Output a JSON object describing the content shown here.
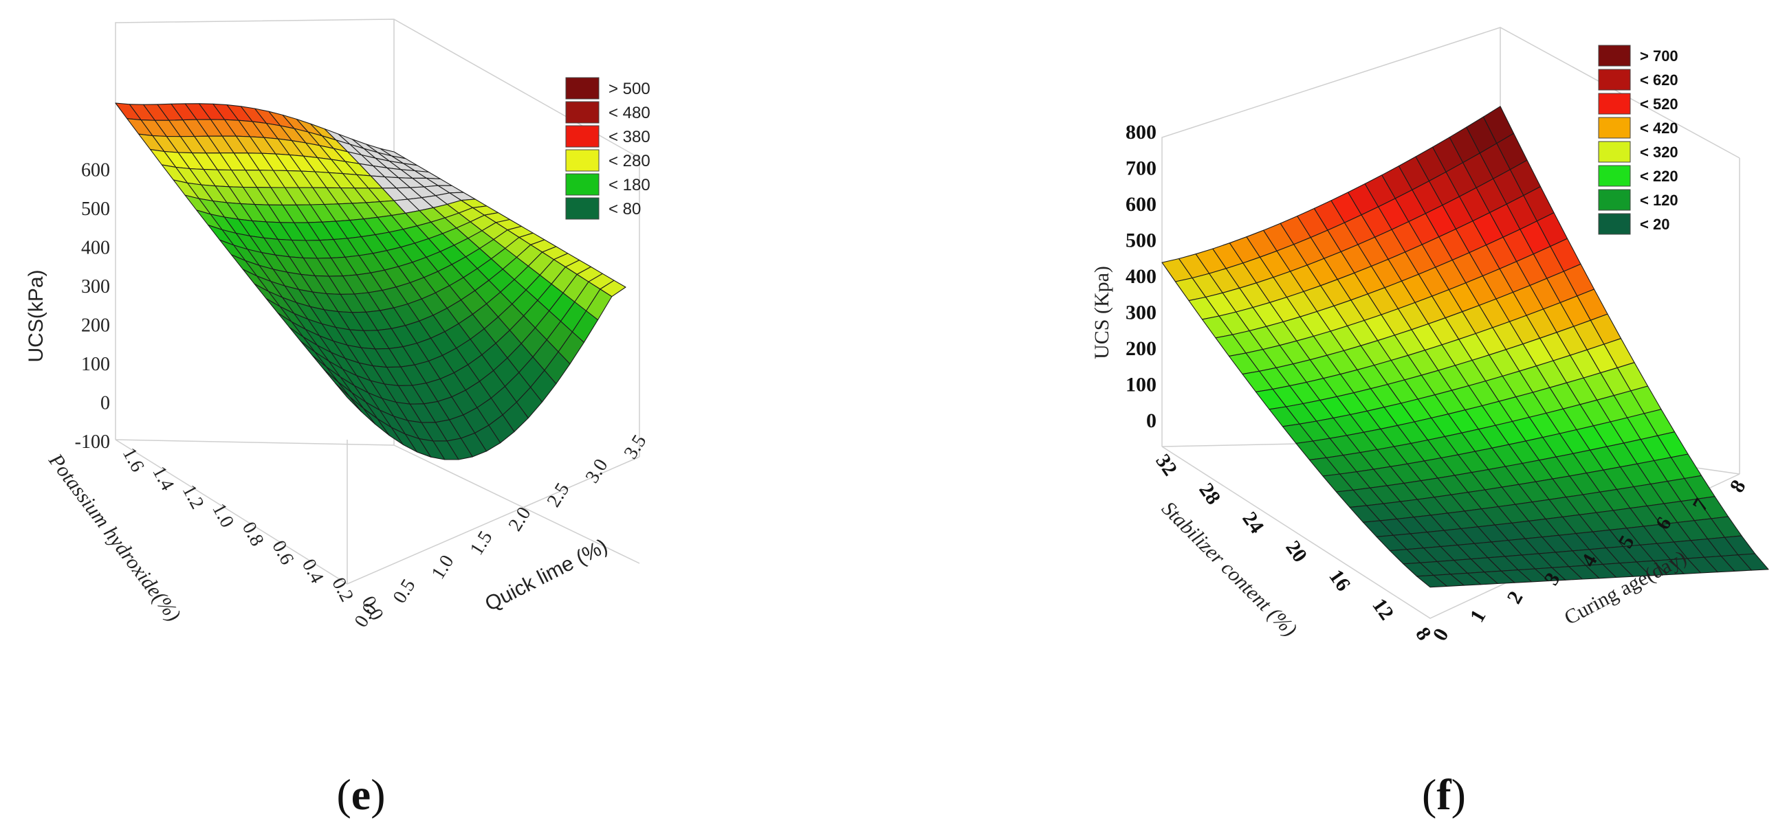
{
  "chart_data": [
    {
      "type": "surface",
      "panel_label_open": "(",
      "panel_label_letter": "e",
      "panel_label_close": ")",
      "zlabel": "UCS(kPa)",
      "xlabel": "Quick lime (%)",
      "ylabel": "Potassium hydroxide(%)",
      "x_ticks": [
        "0.0",
        "0.5",
        "1.0",
        "1.5",
        "2.0",
        "2.5",
        "3.0",
        "3.5"
      ],
      "y_ticks": [
        "0.0",
        "0.2",
        "0.4",
        "0.6",
        "0.8",
        "1.0",
        "1.2",
        "1.4",
        "1.6"
      ],
      "z_ticks": [
        "-100",
        "0",
        "100",
        "200",
        "300",
        "400",
        "500",
        "600"
      ],
      "xlim": [
        0,
        3.5
      ],
      "ylim": [
        0,
        1.6
      ],
      "zlim": [
        -150,
        600
      ],
      "legend_position": "top-right",
      "legend": [
        {
          "label": "> 500",
          "color": "#7a0d0d"
        },
        {
          "label": "< 480",
          "color": "#9b1410"
        },
        {
          "label": "< 380",
          "color": "#ee1c0f"
        },
        {
          "label": "< 280",
          "color": "#e9f21b"
        },
        {
          "label": "< 180",
          "color": "#17c31a"
        },
        {
          "label": "< 80",
          "color": "#0c6b3a"
        }
      ],
      "surface_samples": [
        {
          "quick_lime": 0.0,
          "koh": 1.6,
          "ucs": 390
        },
        {
          "quick_lime": 0.0,
          "koh": 0.0,
          "ucs": -150
        },
        {
          "quick_lime": 3.5,
          "koh": 1.6,
          "ucs": 320
        },
        {
          "quick_lime": 3.5,
          "koh": 0.0,
          "ucs": 360
        },
        {
          "quick_lime": 1.75,
          "koh": 0.8,
          "ucs": 150
        }
      ]
    },
    {
      "type": "surface",
      "panel_label_open": "(",
      "panel_label_letter": "f",
      "panel_label_close": ")",
      "zlabel": "UCS (Kpa)",
      "xlabel": "Curing age(day)",
      "ylabel": "Stabilizer content (%)",
      "x_ticks": [
        "0",
        "1",
        "2",
        "3",
        "4",
        "5",
        "6",
        "7",
        "8"
      ],
      "y_ticks": [
        "8",
        "12",
        "16",
        "20",
        "24",
        "28",
        "32"
      ],
      "z_ticks": [
        "0",
        "100",
        "200",
        "300",
        "400",
        "500",
        "600",
        "700",
        "800"
      ],
      "xlim": [
        0,
        8
      ],
      "ylim": [
        8,
        32
      ],
      "zlim": [
        -50,
        800
      ],
      "legend_position": "top-right",
      "legend": [
        {
          "label": "> 700",
          "color": "#7a0d0d"
        },
        {
          "label": "< 620",
          "color": "#b3140f"
        },
        {
          "label": "< 520",
          "color": "#f21d10"
        },
        {
          "label": "< 420",
          "color": "#f7a800"
        },
        {
          "label": "< 320",
          "color": "#d6f21b"
        },
        {
          "label": "< 220",
          "color": "#1ee01b"
        },
        {
          "label": "< 120",
          "color": "#129a2a"
        },
        {
          "label": "< 20",
          "color": "#0c5f3e"
        }
      ],
      "surface_samples": [
        {
          "curing_age": 0,
          "stabilizer": 32,
          "ucs": 400
        },
        {
          "curing_age": 0,
          "stabilizer": 8,
          "ucs": -30
        },
        {
          "curing_age": 8,
          "stabilizer": 32,
          "ucs": 790
        },
        {
          "curing_age": 8,
          "stabilizer": 8,
          "ucs": 10
        },
        {
          "curing_age": 4,
          "stabilizer": 20,
          "ucs": 150
        }
      ]
    }
  ]
}
